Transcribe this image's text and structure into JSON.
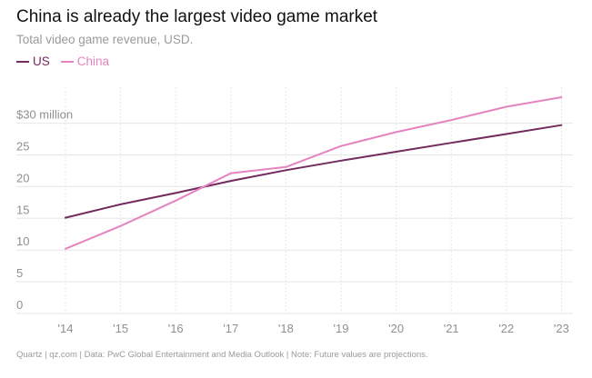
{
  "title": "China is already the largest video game market",
  "subtitle": "Total video game revenue, USD.",
  "footer": "Quartz | qz.com | Data: PwC Global Entertainment and Media Outlook | Note: Future values are projections.",
  "colors": {
    "us": "#732a5f",
    "china": "#e584c0",
    "grid": "#e6e6e6",
    "tick_text": "#8f8f8f"
  },
  "chart_data": {
    "type": "line",
    "title": "China is already the largest video game market",
    "subtitle": "Total video game revenue, USD.",
    "xlabel": "",
    "ylabel": "",
    "categories": [
      "'14",
      "'15",
      "'16",
      "'17",
      "'18",
      "'19",
      "'20",
      "'21",
      "'22",
      "'23"
    ],
    "y_tick_values": [
      0,
      5,
      10,
      15,
      20,
      25,
      30
    ],
    "y_tick_labels": [
      "0",
      "5",
      "10",
      "15",
      "20",
      "25",
      "$30 million"
    ],
    "ylim": [
      0,
      35
    ],
    "grid": true,
    "legend_position": "top-left",
    "series": [
      {
        "name": "US",
        "color": "#732a5f",
        "values": [
          15.1,
          17.2,
          19.0,
          20.9,
          22.6,
          24.1,
          25.5,
          26.9,
          28.3,
          29.7
        ]
      },
      {
        "name": "China",
        "color": "#e584c0",
        "values": [
          10.2,
          13.8,
          17.8,
          22.1,
          23.1,
          26.4,
          28.6,
          30.5,
          32.6,
          34.1
        ]
      }
    ]
  }
}
